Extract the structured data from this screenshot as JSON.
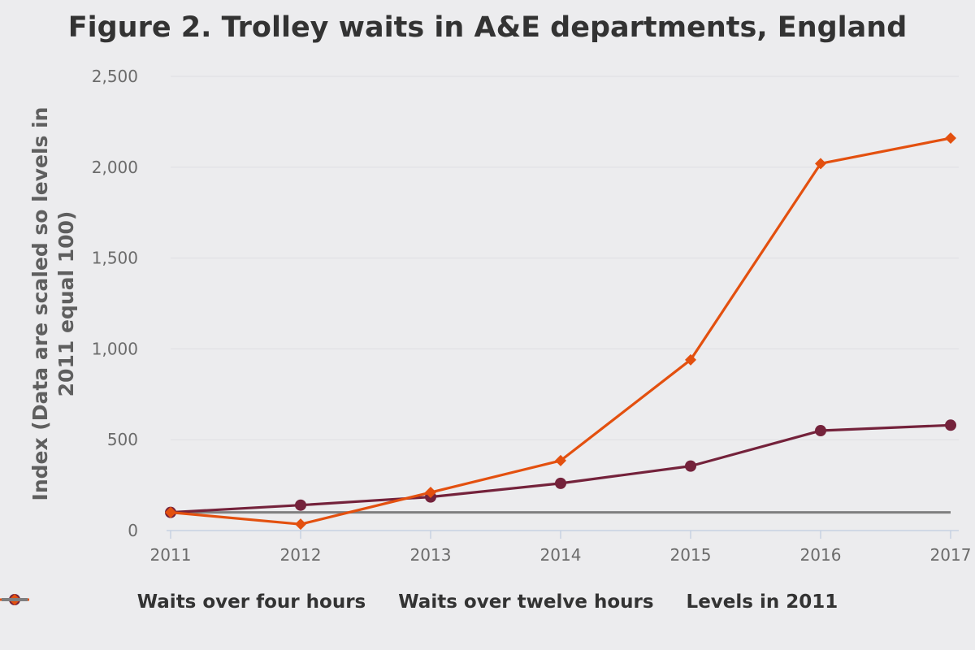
{
  "title": "Figure 2. Trolley waits in A&E departments, England",
  "colors": {
    "four": "#74223b",
    "twelve": "#e3500f",
    "levels": "#7f7f80",
    "grid": "#dedee2",
    "axis": "#c6d1e2"
  },
  "chart_data": {
    "type": "line",
    "ylabel_line1": "Index (Data are scaled so levels in",
    "ylabel_line2": "2011 equal 100)",
    "x": [
      "2011",
      "2012",
      "2013",
      "2014",
      "2015",
      "2016",
      "2017"
    ],
    "x_tick_labels": [
      "2011",
      "2012",
      "2013",
      "2014",
      "2015",
      "2016",
      "2017"
    ],
    "y_ticks": [
      0,
      500,
      1000,
      1500,
      2000,
      2500
    ],
    "y_tick_labels": [
      "0",
      "500",
      "1,000",
      "1,500",
      "2,000",
      "2,500"
    ],
    "ylim": [
      0,
      2500
    ],
    "grid": true,
    "legend_position": "bottom",
    "series": [
      {
        "name": "Waits over four hours",
        "marker": "circle",
        "values": [
          100,
          140,
          185,
          260,
          355,
          550,
          580
        ]
      },
      {
        "name": "Waits over twelve hours",
        "marker": "diamond",
        "values": [
          100,
          35,
          210,
          385,
          940,
          2020,
          2160
        ]
      },
      {
        "name": "Levels in 2011",
        "marker": "none",
        "values": [
          100,
          100,
          100,
          100,
          100,
          100,
          100
        ]
      }
    ]
  }
}
